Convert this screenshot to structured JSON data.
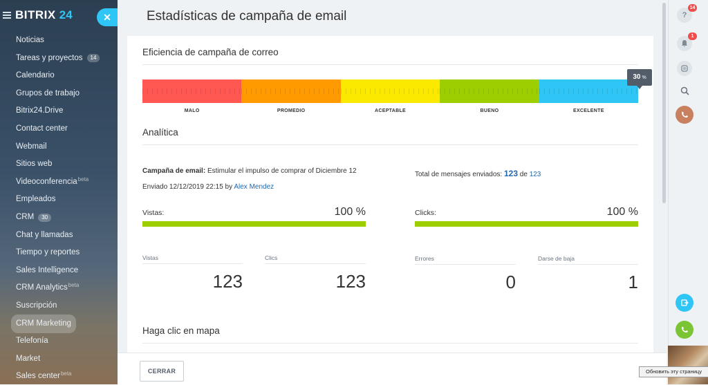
{
  "sidebar": {
    "brand_name": "BITRIX",
    "brand_number": "24",
    "items": [
      {
        "label": "Noticias"
      },
      {
        "label": "Tareas y proyectos",
        "counter": "14"
      },
      {
        "label": "Calendario"
      },
      {
        "label": "Grupos de trabajo"
      },
      {
        "label": "Bitrix24.Drive"
      },
      {
        "label": "Contact center"
      },
      {
        "label": "Webmail"
      },
      {
        "label": "Sitios web"
      },
      {
        "label": "Videoconferencia",
        "sup": "beta"
      },
      {
        "label": "Empleados"
      },
      {
        "label": "CRM",
        "counter": "30"
      },
      {
        "label": "Chat y llamadas"
      },
      {
        "label": "Tiempo y reportes"
      },
      {
        "label": "Sales Intelligence"
      },
      {
        "label": "CRM Analytics",
        "sup": "beta"
      },
      {
        "label": "Suscripción"
      },
      {
        "label": "CRM Marketing",
        "active": true
      },
      {
        "label": "Telefonía"
      },
      {
        "label": "Market"
      },
      {
        "label": "Sales center",
        "sup": "beta"
      }
    ]
  },
  "close_icon_glyph": "✕",
  "page_title": "Estadísticas de campaña de email",
  "efficiency": {
    "title": "Eficiencia de campaña de correo",
    "segments": [
      {
        "label": "MALO",
        "color": "#ff5752"
      },
      {
        "label": "PROMEDIO",
        "color": "#ff9a00"
      },
      {
        "label": "ACEPTABLE",
        "color": "#fbe900"
      },
      {
        "label": "BUENO",
        "color": "#9dcf00"
      },
      {
        "label": "EXCELENTE",
        "color": "#2fc6f6"
      }
    ],
    "value": "30",
    "value_unit": "%"
  },
  "analytics": {
    "title": "Analítica",
    "campaign_label": "Campaña de email:",
    "campaign_name": "Estimular el impulso de comprar of Diciembre 12",
    "sent_text": "Enviado 12/12/2019 22:15 by",
    "sent_by": "Alex Mendez",
    "total_label": "Total de mensajes enviados:",
    "total_sent": "123",
    "total_of": "de",
    "total_all": "123",
    "views": {
      "label": "Vistas:",
      "value": "100 %",
      "fraction": 1.0
    },
    "clicks": {
      "label": "Clicks:",
      "value": "100 %",
      "fraction": 1.0
    },
    "stats": [
      {
        "label": "Vistas",
        "value": "123"
      },
      {
        "label": "Clics",
        "value": "123"
      },
      {
        "label": "Errores",
        "value": "0"
      },
      {
        "label": "Darse de baja",
        "value": "1"
      }
    ]
  },
  "map": {
    "title": "Haga clic en mapa"
  },
  "footer": {
    "close_label": "CERRAR"
  },
  "rightbar": {
    "help_badge": "14",
    "notif_badge": "1"
  },
  "refresh_tip": "Обновить эту страницу"
}
